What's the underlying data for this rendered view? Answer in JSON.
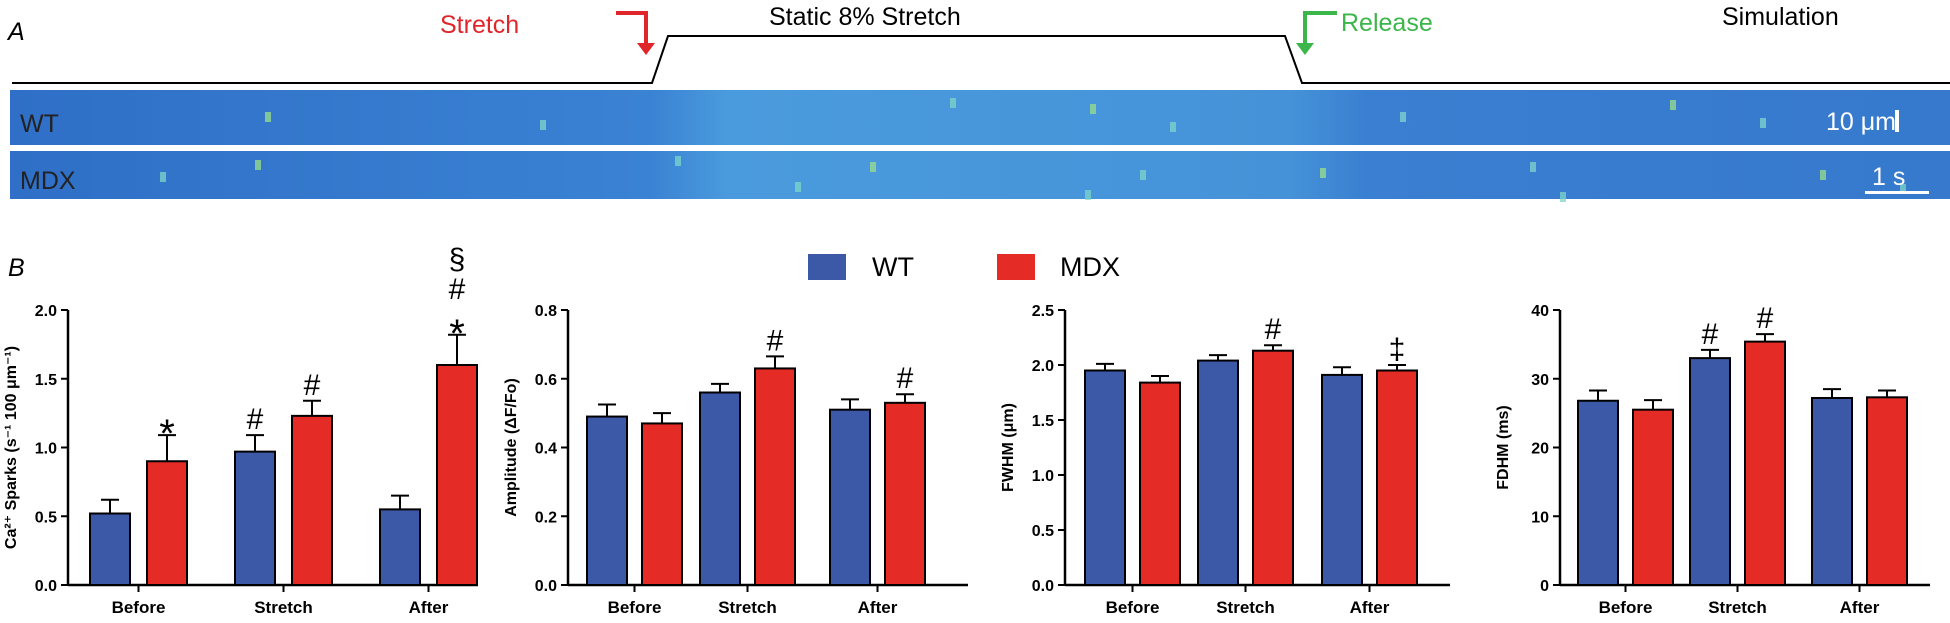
{
  "colors": {
    "wt": "#3C59A8",
    "mdx": "#E52B25",
    "stretch_label": "#E0252B",
    "release_label": "#3CB54A",
    "trace_bg": "#3A7FD1"
  },
  "panel_a": {
    "letter": "A",
    "stretch_label": "Stretch",
    "static_label": "Static 8% Stretch",
    "release_label": "Release",
    "simulation_label": "Simulation",
    "trace_wt_label": "WT",
    "trace_mdx_label": "MDX",
    "scale_um": "10 μm",
    "scale_s": "1 s"
  },
  "panel_b": {
    "letter": "B"
  },
  "legend": {
    "wt": "WT",
    "mdx": "MDX"
  },
  "chart_data": [
    {
      "type": "bar",
      "ylabel": "Ca²⁺ Sparks (s⁻¹ 100 μm⁻¹)",
      "categories": [
        "Before",
        "Stretch",
        "After"
      ],
      "ylim": [
        0,
        2.0
      ],
      "yticks": [
        "0.0",
        "0.5",
        "1.0",
        "1.5",
        "2.0"
      ],
      "series": [
        {
          "name": "WT",
          "values": [
            0.52,
            0.97,
            0.55
          ],
          "errors": [
            0.1,
            0.12,
            0.1
          ]
        },
        {
          "name": "MDX",
          "values": [
            0.9,
            1.23,
            1.6
          ],
          "errors": [
            0.19,
            0.11,
            0.22
          ]
        }
      ],
      "annotations": [
        {
          "series": "MDX",
          "category": "Before",
          "marks": [
            "*"
          ]
        },
        {
          "series": "WT",
          "category": "Stretch",
          "marks": [
            "#"
          ]
        },
        {
          "series": "MDX",
          "category": "Stretch",
          "marks": [
            "#"
          ]
        },
        {
          "series": "MDX",
          "category": "After",
          "marks": [
            "*",
            "#",
            "§"
          ]
        }
      ]
    },
    {
      "type": "bar",
      "ylabel": "Amplitude (ΔF/Fo)",
      "categories": [
        "Before",
        "Stretch",
        "After"
      ],
      "ylim": [
        0,
        0.8
      ],
      "yticks": [
        "0.0",
        "0.2",
        "0.4",
        "0.6",
        "0.8"
      ],
      "series": [
        {
          "name": "WT",
          "values": [
            0.49,
            0.56,
            0.51
          ],
          "errors": [
            0.035,
            0.025,
            0.03
          ]
        },
        {
          "name": "MDX",
          "values": [
            0.47,
            0.63,
            0.53
          ],
          "errors": [
            0.03,
            0.035,
            0.025
          ]
        }
      ],
      "annotations": [
        {
          "series": "MDX",
          "category": "Stretch",
          "marks": [
            "#"
          ]
        },
        {
          "series": "MDX",
          "category": "After",
          "marks": [
            "#"
          ]
        }
      ]
    },
    {
      "type": "bar",
      "ylabel": "FWHM (μm)",
      "categories": [
        "Before",
        "Stretch",
        "After"
      ],
      "ylim": [
        0,
        2.5
      ],
      "yticks": [
        "0.0",
        "0.5",
        "1.0",
        "1.5",
        "2.0",
        "2.5"
      ],
      "series": [
        {
          "name": "WT",
          "values": [
            1.95,
            2.04,
            1.91
          ],
          "errors": [
            0.06,
            0.05,
            0.07
          ]
        },
        {
          "name": "MDX",
          "values": [
            1.84,
            2.13,
            1.95
          ],
          "errors": [
            0.06,
            0.05,
            0.05
          ]
        }
      ],
      "annotations": [
        {
          "series": "MDX",
          "category": "Stretch",
          "marks": [
            "#"
          ]
        },
        {
          "series": "MDX",
          "category": "After",
          "marks": [
            "‡"
          ]
        }
      ]
    },
    {
      "type": "bar",
      "ylabel": "FDHM (ms)",
      "categories": [
        "Before",
        "Stretch",
        "After"
      ],
      "ylim": [
        0,
        40
      ],
      "yticks": [
        "0",
        "10",
        "20",
        "30",
        "40"
      ],
      "series": [
        {
          "name": "WT",
          "values": [
            26.8,
            33.0,
            27.2
          ],
          "errors": [
            1.5,
            1.2,
            1.3
          ]
        },
        {
          "name": "MDX",
          "values": [
            25.5,
            35.4,
            27.3
          ],
          "errors": [
            1.4,
            1.1,
            1.0
          ]
        }
      ],
      "annotations": [
        {
          "series": "WT",
          "category": "Stretch",
          "marks": [
            "#"
          ]
        },
        {
          "series": "MDX",
          "category": "Stretch",
          "marks": [
            "#"
          ]
        }
      ]
    }
  ]
}
